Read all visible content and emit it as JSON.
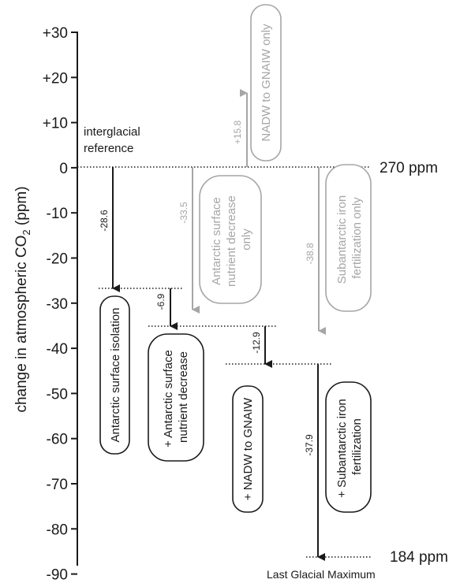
{
  "axis": {
    "ylabel_main": "change in atmospheric CO",
    "ylabel_sub": "2",
    "ylabel_unit": " (ppm)",
    "ticks": [
      "+30",
      "+20",
      "+10",
      "0",
      "-10",
      "-20",
      "-30",
      "-40",
      "-50",
      "-60",
      "-70",
      "-80",
      "-90"
    ]
  },
  "annotations": {
    "reference_line1": "interglacial",
    "reference_line2": "reference",
    "reference_ppm": "270 ppm",
    "final_ppm": "184 ppm",
    "final_label": "Last Glacial Maximum"
  },
  "steps": [
    {
      "value_label": "-28.6",
      "box_lines": [
        "Antarctic surface isolation"
      ]
    },
    {
      "value_label": "-6.9",
      "box_lines": [
        "+ Antarctic surface",
        "nutrient decrease"
      ]
    },
    {
      "value_label": "-12.9",
      "box_lines": [
        "+ NADW to GNAIW"
      ]
    },
    {
      "value_label": "-37.9",
      "box_lines": [
        "+ Subantarctic iron",
        "fertilization"
      ]
    }
  ],
  "singles": [
    {
      "value_label": "+15.8",
      "box_lines": [
        "NADW to GNAIW only"
      ]
    },
    {
      "value_label": "-33.5",
      "box_lines": [
        "Antarctic surface",
        "nutrient decrease",
        "only"
      ]
    },
    {
      "value_label": "-38.8",
      "box_lines": [
        "Subantarctic iron",
        "fertilization only"
      ]
    }
  ],
  "colors": {
    "main": "#1a1a1a",
    "grey": "#a6a6a6"
  }
}
